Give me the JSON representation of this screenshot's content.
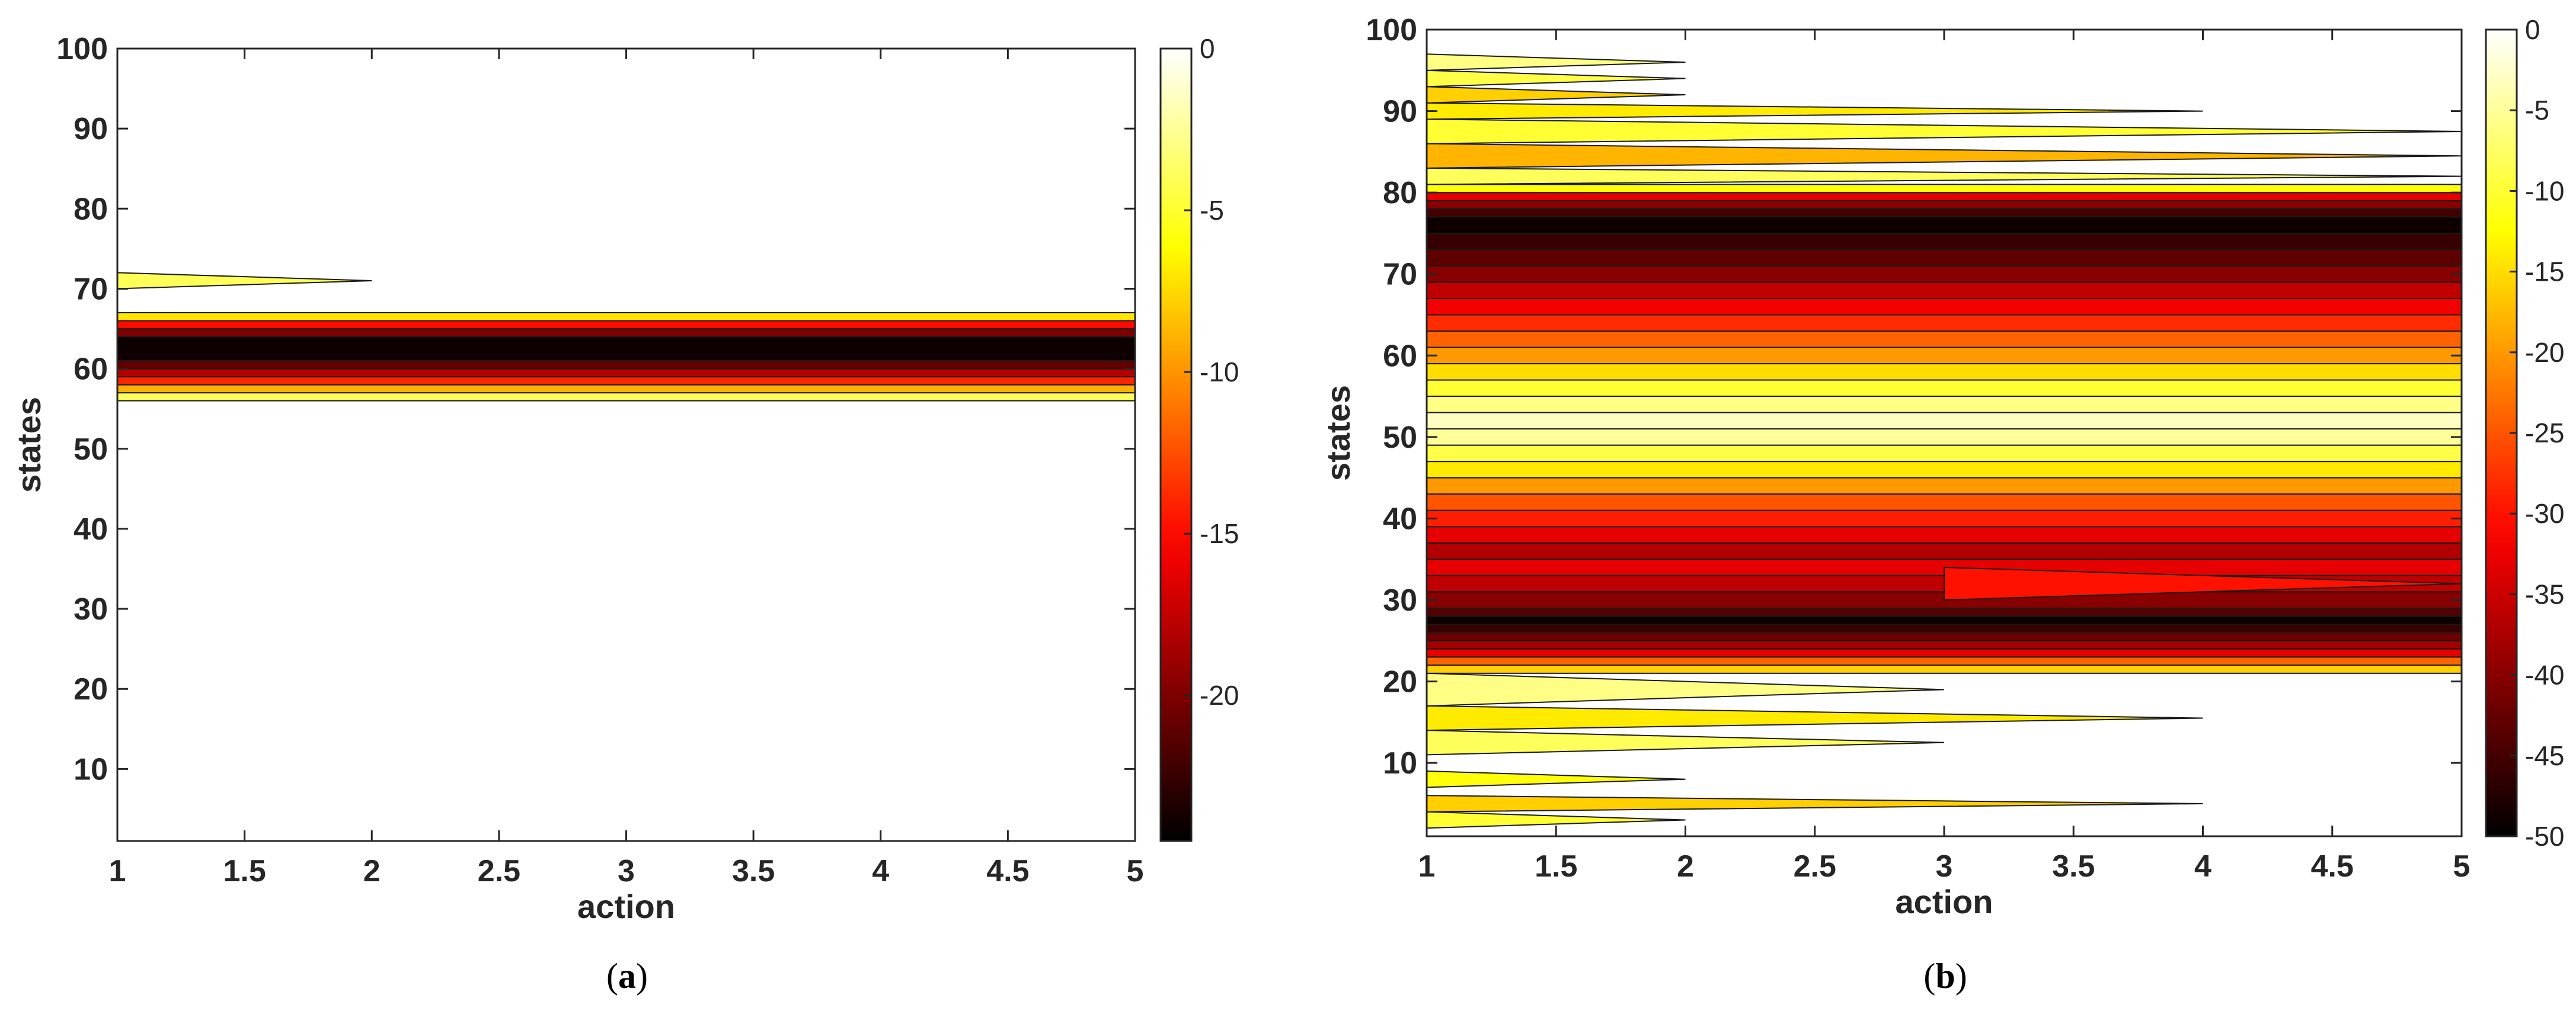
{
  "palette": {
    "colormap_name": "hot",
    "frame": "#262626",
    "contour_line": "#1a1a1a",
    "background": "#ffffff"
  },
  "chart_data": [
    {
      "type": "contour",
      "caption_label": "a",
      "xlabel": "action",
      "ylabel": "states",
      "x": [
        1,
        1.5,
        2,
        2.5,
        3,
        3.5,
        4,
        4.5,
        5
      ],
      "x_tick_labels": [
        "1",
        "1.5",
        "2",
        "2.5",
        "3",
        "3.5",
        "4",
        "4.5",
        "5"
      ],
      "xlim": [
        1,
        5
      ],
      "ylim": [
        1,
        100
      ],
      "y_ticks": [
        10,
        20,
        30,
        40,
        50,
        60,
        70,
        80,
        90,
        100
      ],
      "y_tick_labels": [
        "10",
        "20",
        "30",
        "40",
        "50",
        "60",
        "70",
        "80",
        "90",
        "100"
      ],
      "colorbar": {
        "clim": [
          -24.5,
          0
        ],
        "ticks": [
          0,
          -5,
          -10,
          -15,
          -20
        ],
        "tick_labels": [
          "0",
          "-5",
          "-10",
          "-15",
          "-20"
        ]
      },
      "bands": [
        {
          "y0": 56,
          "y1": 57,
          "value": -4
        },
        {
          "y0": 57,
          "y1": 58,
          "value": -9
        },
        {
          "y0": 58,
          "y1": 59,
          "value": -14
        },
        {
          "y0": 59,
          "y1": 60,
          "value": -18
        },
        {
          "y0": 60,
          "y1": 61,
          "value": -21
        },
        {
          "y0": 61,
          "y1": 64,
          "value": -24
        },
        {
          "y0": 64,
          "y1": 65,
          "value": -20
        },
        {
          "y0": 65,
          "y1": 66,
          "value": -15
        },
        {
          "y0": 66,
          "y1": 67,
          "value": -7
        }
      ],
      "wedges": [
        {
          "x_base": 1,
          "x_tip": 2,
          "y_low": 70,
          "y_high": 72,
          "value": -4
        }
      ]
    },
    {
      "type": "contour",
      "caption_label": "b",
      "xlabel": "action",
      "ylabel": "states",
      "x": [
        1,
        1.5,
        2,
        2.5,
        3,
        3.5,
        4,
        4.5,
        5
      ],
      "x_tick_labels": [
        "1",
        "1.5",
        "2",
        "2.5",
        "3",
        "3.5",
        "4",
        "4.5",
        "5"
      ],
      "xlim": [
        1,
        5
      ],
      "ylim": [
        1,
        100
      ],
      "y_ticks": [
        10,
        20,
        30,
        40,
        50,
        60,
        70,
        80,
        90,
        100
      ],
      "y_tick_labels": [
        "10",
        "20",
        "30",
        "40",
        "50",
        "60",
        "70",
        "80",
        "90",
        "100"
      ],
      "colorbar": {
        "clim": [
          -50,
          0
        ],
        "ticks": [
          0,
          -5,
          -10,
          -15,
          -20,
          -25,
          -30,
          -35,
          -40,
          -45,
          -50
        ],
        "tick_labels": [
          "0",
          "-5",
          "-10",
          "-15",
          "-20",
          "-25",
          "-30",
          "-35",
          "-40",
          "-45",
          "-50"
        ]
      },
      "bands": [
        {
          "y0": 21,
          "y1": 22,
          "value": -16
        },
        {
          "y0": 22,
          "y1": 23,
          "value": -24
        },
        {
          "y0": 23,
          "y1": 24,
          "value": -33
        },
        {
          "y0": 24,
          "y1": 25,
          "value": -38
        },
        {
          "y0": 25,
          "y1": 26,
          "value": -42
        },
        {
          "y0": 26,
          "y1": 27,
          "value": -46
        },
        {
          "y0": 27,
          "y1": 28,
          "value": -49
        },
        {
          "y0": 28,
          "y1": 29,
          "value": -44
        },
        {
          "y0": 29,
          "y1": 31,
          "value": -40
        },
        {
          "y0": 31,
          "y1": 33,
          "value": -36
        },
        {
          "y0": 33,
          "y1": 35,
          "value": -33
        },
        {
          "y0": 35,
          "y1": 37,
          "value": -37
        },
        {
          "y0": 37,
          "y1": 39,
          "value": -33
        },
        {
          "y0": 39,
          "y1": 41,
          "value": -29
        },
        {
          "y0": 41,
          "y1": 43,
          "value": -25
        },
        {
          "y0": 43,
          "y1": 45,
          "value": -20
        },
        {
          "y0": 45,
          "y1": 47,
          "value": -14
        },
        {
          "y0": 47,
          "y1": 49,
          "value": -9
        },
        {
          "y0": 49,
          "y1": 51,
          "value": -5
        },
        {
          "y0": 51,
          "y1": 53,
          "value": -3
        },
        {
          "y0": 53,
          "y1": 55,
          "value": -6
        },
        {
          "y0": 55,
          "y1": 57,
          "value": -10
        },
        {
          "y0": 57,
          "y1": 59,
          "value": -15
        },
        {
          "y0": 59,
          "y1": 61,
          "value": -20
        },
        {
          "y0": 61,
          "y1": 63,
          "value": -24
        },
        {
          "y0": 63,
          "y1": 65,
          "value": -28
        },
        {
          "y0": 65,
          "y1": 67,
          "value": -32
        },
        {
          "y0": 67,
          "y1": 69,
          "value": -36
        },
        {
          "y0": 69,
          "y1": 71,
          "value": -40
        },
        {
          "y0": 71,
          "y1": 73,
          "value": -43
        },
        {
          "y0": 73,
          "y1": 75,
          "value": -46
        },
        {
          "y0": 75,
          "y1": 77,
          "value": -49
        },
        {
          "y0": 77,
          "y1": 78,
          "value": -45
        },
        {
          "y0": 78,
          "y1": 79,
          "value": -40
        },
        {
          "y0": 79,
          "y1": 80,
          "value": -33
        },
        {
          "y0": 80,
          "y1": 81,
          "value": -12
        }
      ],
      "wedges": [
        {
          "x_base": 1,
          "x_tip": 2,
          "y_low": 2,
          "y_high": 4,
          "value": -10
        },
        {
          "x_base": 1,
          "x_tip": 4,
          "y_low": 4,
          "y_high": 6,
          "value": -16
        },
        {
          "x_base": 1,
          "x_tip": 2,
          "y_low": 7,
          "y_high": 9,
          "value": -12
        },
        {
          "x_base": 1,
          "x_tip": 3,
          "y_low": 11,
          "y_high": 14,
          "value": -8
        },
        {
          "x_base": 1,
          "x_tip": 4,
          "y_low": 14,
          "y_high": 17,
          "value": -14
        },
        {
          "x_base": 1,
          "x_tip": 3,
          "y_low": 17,
          "y_high": 21,
          "value": -6
        },
        {
          "x_base": 3,
          "x_tip": 5,
          "y_low": 30,
          "y_high": 34,
          "value": -30
        },
        {
          "x_base": 1,
          "x_tip": 5,
          "y_low": 81,
          "y_high": 83,
          "value": -8
        },
        {
          "x_base": 1,
          "x_tip": 5,
          "y_low": 83,
          "y_high": 86,
          "value": -18
        },
        {
          "x_base": 1,
          "x_tip": 5,
          "y_low": 86,
          "y_high": 89,
          "value": -10
        },
        {
          "x_base": 1,
          "x_tip": 4,
          "y_low": 89,
          "y_high": 91,
          "value": -14
        },
        {
          "x_base": 1,
          "x_tip": 2,
          "y_low": 91,
          "y_high": 93,
          "value": -16
        },
        {
          "x_base": 1,
          "x_tip": 2,
          "y_low": 93,
          "y_high": 95,
          "value": -9
        },
        {
          "x_base": 1,
          "x_tip": 2,
          "y_low": 95,
          "y_high": 97,
          "value": -6
        }
      ]
    }
  ]
}
